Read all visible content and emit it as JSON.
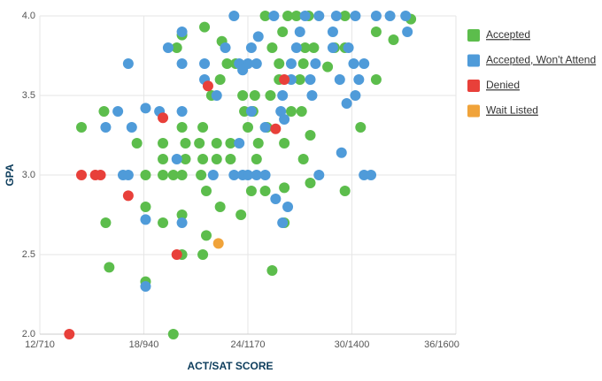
{
  "chart_data": {
    "type": "scatter",
    "x_label": "ACT/SAT SCORE",
    "y_label": "GPA",
    "xlim": [
      12,
      36
    ],
    "ylim": [
      2,
      4
    ],
    "xticks": [
      {
        "value": 12,
        "label": "12/710"
      },
      {
        "value": 18,
        "label": "18/940"
      },
      {
        "value": 24,
        "label": "24/1170"
      },
      {
        "value": 30,
        "label": "30/1400"
      },
      {
        "value": 36,
        "label": "36/1600"
      }
    ],
    "yticks": [
      {
        "value": 2,
        "label": "2.0"
      },
      2.5,
      {
        "value": 3,
        "label": "3.0"
      },
      3.5,
      {
        "value": 4,
        "label": "4.0"
      }
    ],
    "grid": true,
    "legend": "right",
    "series": [
      {
        "name": "Accepted",
        "color": "#5cbd4c",
        "x": [
          14.4,
          15.7,
          15.8,
          16.0,
          17.6,
          18.1,
          18.1,
          18.1,
          19.1,
          19.1,
          19.1,
          19.1,
          19.7,
          19.7,
          20.2,
          20.2,
          20.2,
          20.2,
          20.4,
          20.4,
          19.9,
          20.2,
          21.2,
          21.4,
          21.3,
          21.4,
          21.6,
          21.6,
          21.4,
          21.5,
          21.9,
          22.2,
          22.2,
          22.4,
          22.4,
          22.5,
          22.8,
          23.0,
          23.0,
          23.3,
          23.6,
          23.7,
          23.8,
          24.0,
          24.2,
          24.3,
          24.4,
          24.5,
          24.6,
          25.0,
          25.0,
          25.3,
          25.4,
          25.4,
          25.8,
          26.0,
          26.1,
          26.1,
          26.1,
          26.3,
          26.5,
          26.8,
          27.0,
          27.1,
          27.2,
          27.2,
          27.3,
          27.5,
          27.6,
          27.6,
          27.8,
          28.6,
          29.0,
          29.6,
          29.6,
          29.6,
          30.5,
          31.4,
          31.4,
          32.4,
          33.4,
          25.8,
          25.1
        ],
        "values": [
          3.3,
          3.4,
          2.7,
          2.42,
          3.2,
          3.0,
          2.8,
          2.33,
          3.2,
          3.0,
          3.1,
          2.7,
          2.0,
          3.0,
          3.3,
          3.0,
          2.75,
          2.5,
          3.2,
          3.1,
          3.8,
          3.88,
          3.2,
          3.3,
          3.0,
          3.1,
          2.9,
          2.62,
          2.5,
          3.93,
          3.5,
          3.2,
          3.1,
          2.8,
          3.6,
          3.84,
          3.7,
          3.1,
          3.2,
          3.7,
          2.75,
          3.5,
          3.4,
          3.3,
          2.9,
          3.4,
          3.5,
          3.1,
          3.2,
          2.9,
          4.0,
          3.5,
          2.4,
          3.8,
          3.7,
          3.9,
          3.2,
          2.92,
          2.7,
          4.0,
          3.4,
          4.0,
          3.6,
          3.4,
          3.7,
          3.1,
          3.8,
          4.0,
          2.95,
          3.25,
          3.8,
          3.68,
          3.8,
          4.0,
          2.9,
          3.8,
          3.3,
          3.9,
          3.6,
          3.85,
          3.98,
          3.6,
          3.3
        ]
      },
      {
        "name": "Accepted, Won't Attend",
        "color": "#4f9bd9",
        "x": [
          17.1,
          15.8,
          16.5,
          18.1,
          18.9,
          17.3,
          16.8,
          17.1,
          18.1,
          18.1,
          19.4,
          20.2,
          20.2,
          20.2,
          19.9,
          20.2,
          21.5,
          21.5,
          22.2,
          22.7,
          23.2,
          23.5,
          23.7,
          24.0,
          24.2,
          24.5,
          24.6,
          23.2,
          23.7,
          24.0,
          24.5,
          25.0,
          24.2,
          23.5,
          25.0,
          25.5,
          26.0,
          25.9,
          26.1,
          25.6,
          26.0,
          26.3,
          26.5,
          26.5,
          26.8,
          27.0,
          27.3,
          27.6,
          27.7,
          27.9,
          28.1,
          28.1,
          28.9,
          29.1,
          29.3,
          29.7,
          29.4,
          30.2,
          30.1,
          30.7,
          30.4,
          30.2,
          30.7,
          31.1,
          31.4,
          32.2,
          33.1,
          33.2,
          29.8,
          28.9,
          22.0
        ],
        "values": [
          3.7,
          3.3,
          3.4,
          3.42,
          3.4,
          3.3,
          3.0,
          3.0,
          2.72,
          2.3,
          3.8,
          3.9,
          3.7,
          3.4,
          3.1,
          2.7,
          3.7,
          3.6,
          3.5,
          3.8,
          4.0,
          3.7,
          3.66,
          3.7,
          3.8,
          3.7,
          3.87,
          3.0,
          3.0,
          3.0,
          3.0,
          3.0,
          3.4,
          3.2,
          3.3,
          4.0,
          3.5,
          3.4,
          3.35,
          2.85,
          2.7,
          2.8,
          3.6,
          3.7,
          3.8,
          3.9,
          4.0,
          3.6,
          3.5,
          3.7,
          3.0,
          4.0,
          3.8,
          4.0,
          3.6,
          3.45,
          3.14,
          4.0,
          3.7,
          3.7,
          3.6,
          3.5,
          3.0,
          3.0,
          4.0,
          4.0,
          4.0,
          3.9,
          3.8,
          3.9,
          3.0
        ]
      },
      {
        "name": "Denied",
        "color": "#e8403a",
        "x": [
          13.7,
          14.4,
          15.2,
          15.5,
          17.1,
          19.1,
          19.9,
          21.7,
          25.6,
          26.1
        ],
        "values": [
          2.0,
          3.0,
          3.0,
          3.0,
          2.87,
          3.36,
          2.5,
          3.56,
          3.29,
          3.6
        ]
      },
      {
        "name": "Wait Listed",
        "color": "#f0a33a",
        "x": [
          22.3
        ],
        "values": [
          2.57
        ]
      }
    ]
  }
}
